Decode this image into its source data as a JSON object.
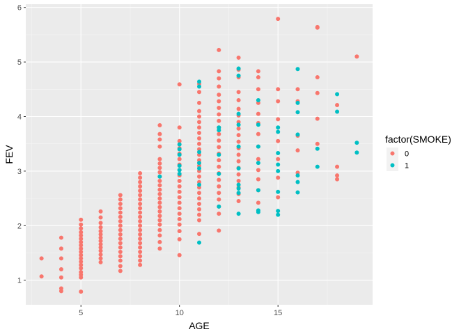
{
  "chart_data": {
    "type": "scatter",
    "title": "",
    "xlabel": "AGE",
    "ylabel": "FEV",
    "xlim": [
      2.2,
      19.8
    ],
    "ylim": [
      0.55,
      6.06
    ],
    "x_ticks": [
      5,
      10,
      15
    ],
    "y_ticks": [
      1,
      2,
      3,
      4,
      5,
      6
    ],
    "grid": true,
    "legend": {
      "title": "factor(SMOKE)",
      "position": "right"
    },
    "series": [
      {
        "name": "0",
        "color": "#F8766D",
        "points": [
          [
            3,
            1.07
          ],
          [
            3,
            1.4
          ],
          [
            4,
            0.8
          ],
          [
            4,
            0.85
          ],
          [
            4,
            1.05
          ],
          [
            4,
            1.2
          ],
          [
            4,
            1.4
          ],
          [
            4,
            1.58
          ],
          [
            4,
            1.78
          ],
          [
            5,
            0.79
          ],
          [
            5,
            1.05
          ],
          [
            5,
            1.1
          ],
          [
            5,
            1.15
          ],
          [
            5,
            1.22
          ],
          [
            5,
            1.28
          ],
          [
            5,
            1.34
          ],
          [
            5,
            1.4
          ],
          [
            5,
            1.46
          ],
          [
            5,
            1.52
          ],
          [
            5,
            1.58
          ],
          [
            5,
            1.64
          ],
          [
            5,
            1.7
          ],
          [
            5,
            1.76
          ],
          [
            5,
            1.82
          ],
          [
            5,
            1.88
          ],
          [
            5,
            1.95
          ],
          [
            5,
            2.02
          ],
          [
            5,
            2.11
          ],
          [
            6,
            1.33
          ],
          [
            6,
            1.4
          ],
          [
            6,
            1.47
          ],
          [
            6,
            1.54
          ],
          [
            6,
            1.6
          ],
          [
            6,
            1.66
          ],
          [
            6,
            1.72
          ],
          [
            6,
            1.78
          ],
          [
            6,
            1.84
          ],
          [
            6,
            1.9
          ],
          [
            6,
            1.97
          ],
          [
            6,
            2.05
          ],
          [
            6,
            2.15
          ],
          [
            6,
            2.26
          ],
          [
            7,
            1.17
          ],
          [
            7,
            1.26
          ],
          [
            7,
            1.36
          ],
          [
            7,
            1.44
          ],
          [
            7,
            1.52
          ],
          [
            7,
            1.6
          ],
          [
            7,
            1.68
          ],
          [
            7,
            1.76
          ],
          [
            7,
            1.84
          ],
          [
            7,
            1.92
          ],
          [
            7,
            2.0
          ],
          [
            7,
            2.08
          ],
          [
            7,
            2.16
          ],
          [
            7,
            2.24
          ],
          [
            7,
            2.32
          ],
          [
            7,
            2.4
          ],
          [
            7,
            2.48
          ],
          [
            7,
            2.56
          ],
          [
            8,
            1.28
          ],
          [
            8,
            1.36
          ],
          [
            8,
            1.44
          ],
          [
            8,
            1.52
          ],
          [
            8,
            1.6
          ],
          [
            8,
            1.68
          ],
          [
            8,
            1.76
          ],
          [
            8,
            1.84
          ],
          [
            8,
            1.92
          ],
          [
            8,
            2.0
          ],
          [
            8,
            2.08
          ],
          [
            8,
            2.16
          ],
          [
            8,
            2.24
          ],
          [
            8,
            2.32
          ],
          [
            8,
            2.4
          ],
          [
            8,
            2.48
          ],
          [
            8,
            2.56
          ],
          [
            8,
            2.64
          ],
          [
            8,
            2.72
          ],
          [
            8,
            2.8
          ],
          [
            8,
            2.88
          ],
          [
            8,
            2.96
          ],
          [
            9,
            1.58
          ],
          [
            9,
            1.7
          ],
          [
            9,
            1.82
          ],
          [
            9,
            1.92
          ],
          [
            9,
            2.02
          ],
          [
            9,
            2.1
          ],
          [
            9,
            2.18
          ],
          [
            9,
            2.26
          ],
          [
            9,
            2.34
          ],
          [
            9,
            2.42
          ],
          [
            9,
            2.5
          ],
          [
            9,
            2.58
          ],
          [
            9,
            2.66
          ],
          [
            9,
            2.74
          ],
          [
            9,
            2.82
          ],
          [
            9,
            2.9
          ],
          [
            9,
            2.98
          ],
          [
            9,
            3.06
          ],
          [
            9,
            3.14
          ],
          [
            9,
            3.22
          ],
          [
            9,
            3.45
          ],
          [
            9,
            3.58
          ],
          [
            9,
            3.68
          ],
          [
            9,
            3.84
          ],
          [
            10,
            1.46
          ],
          [
            10,
            1.75
          ],
          [
            10,
            1.9
          ],
          [
            10,
            2.02
          ],
          [
            10,
            2.12
          ],
          [
            10,
            2.22
          ],
          [
            10,
            2.32
          ],
          [
            10,
            2.42
          ],
          [
            10,
            2.52
          ],
          [
            10,
            2.62
          ],
          [
            10,
            2.72
          ],
          [
            10,
            2.82
          ],
          [
            10,
            2.92
          ],
          [
            10,
            3.02
          ],
          [
            10,
            3.12
          ],
          [
            10,
            3.22
          ],
          [
            10,
            3.32
          ],
          [
            10,
            3.42
          ],
          [
            10,
            3.55
          ],
          [
            10,
            3.8
          ],
          [
            10,
            4.59
          ],
          [
            11,
            1.85
          ],
          [
            11,
            2.1
          ],
          [
            11,
            2.2
          ],
          [
            11,
            2.3
          ],
          [
            11,
            2.4
          ],
          [
            11,
            2.5
          ],
          [
            11,
            2.6
          ],
          [
            11,
            2.7
          ],
          [
            11,
            2.8
          ],
          [
            11,
            2.9
          ],
          [
            11,
            3.0
          ],
          [
            11,
            3.1
          ],
          [
            11,
            3.2
          ],
          [
            11,
            3.3
          ],
          [
            11,
            3.4
          ],
          [
            11,
            3.5
          ],
          [
            11,
            3.6
          ],
          [
            11,
            3.7
          ],
          [
            11,
            3.8
          ],
          [
            11,
            3.9
          ],
          [
            11,
            4.0
          ],
          [
            11,
            4.1
          ],
          [
            11,
            4.25
          ],
          [
            11,
            4.45
          ],
          [
            11,
            4.6
          ],
          [
            12,
            1.91
          ],
          [
            12,
            2.22
          ],
          [
            12,
            2.35
          ],
          [
            12,
            2.48
          ],
          [
            12,
            2.6
          ],
          [
            12,
            2.72
          ],
          [
            12,
            2.84
          ],
          [
            12,
            2.96
          ],
          [
            12,
            3.08
          ],
          [
            12,
            3.2
          ],
          [
            12,
            3.32
          ],
          [
            12,
            3.44
          ],
          [
            12,
            3.56
          ],
          [
            12,
            3.68
          ],
          [
            12,
            3.8
          ],
          [
            12,
            3.92
          ],
          [
            12,
            4.04
          ],
          [
            12,
            4.16
          ],
          [
            12,
            4.28
          ],
          [
            12,
            4.4
          ],
          [
            12,
            4.55
          ],
          [
            12,
            4.7
          ],
          [
            12,
            4.83
          ],
          [
            12,
            5.22
          ],
          [
            13,
            2.45
          ],
          [
            13,
            2.58
          ],
          [
            13,
            2.7
          ],
          [
            13,
            2.82
          ],
          [
            13,
            2.94
          ],
          [
            13,
            3.06
          ],
          [
            13,
            3.18
          ],
          [
            13,
            3.3
          ],
          [
            13,
            3.42
          ],
          [
            13,
            3.54
          ],
          [
            13,
            3.66
          ],
          [
            13,
            3.78
          ],
          [
            13,
            3.9
          ],
          [
            13,
            4.02
          ],
          [
            13,
            4.14
          ],
          [
            13,
            4.3
          ],
          [
            13,
            4.45
          ],
          [
            13,
            4.72
          ],
          [
            13,
            4.86
          ],
          [
            13,
            5.08
          ],
          [
            14,
            2.42
          ],
          [
            14,
            2.65
          ],
          [
            14,
            2.85
          ],
          [
            14,
            3.02
          ],
          [
            14,
            3.22
          ],
          [
            14,
            3.45
          ],
          [
            14,
            3.68
          ],
          [
            14,
            3.88
          ],
          [
            14,
            4.05
          ],
          [
            14,
            4.25
          ],
          [
            14,
            4.5
          ],
          [
            14,
            4.72
          ],
          [
            14,
            4.83
          ],
          [
            15,
            2.52
          ],
          [
            15,
            2.88
          ],
          [
            15,
            3.22
          ],
          [
            15,
            3.55
          ],
          [
            15,
            3.95
          ],
          [
            15,
            4.28
          ],
          [
            15,
            4.5
          ],
          [
            15,
            5.79
          ],
          [
            16,
            2.97
          ],
          [
            16,
            3.38
          ],
          [
            16,
            3.65
          ],
          [
            16,
            4.28
          ],
          [
            16,
            4.5
          ],
          [
            17,
            3.5
          ],
          [
            17,
            3.96
          ],
          [
            17,
            4.43
          ],
          [
            17,
            4.72
          ],
          [
            17,
            5.63
          ],
          [
            17,
            5.64
          ],
          [
            18,
            2.85
          ],
          [
            18,
            2.92
          ],
          [
            18,
            3.08
          ],
          [
            18,
            4.21
          ],
          [
            19,
            5.1
          ]
        ]
      },
      {
        "name": "1",
        "color": "#00BFC4",
        "points": [
          [
            9,
            2.9
          ],
          [
            10,
            2.95
          ],
          [
            10,
            3.02
          ],
          [
            10,
            3.1
          ],
          [
            10,
            3.3
          ],
          [
            10,
            3.4
          ],
          [
            10,
            3.49
          ],
          [
            11,
            1.69
          ],
          [
            11,
            2.75
          ],
          [
            11,
            3.05
          ],
          [
            11,
            3.15
          ],
          [
            11,
            3.35
          ],
          [
            11,
            4.55
          ],
          [
            11,
            4.64
          ],
          [
            12,
            2.35
          ],
          [
            12,
            2.95
          ],
          [
            12,
            3.3
          ],
          [
            12,
            3.75
          ],
          [
            12,
            3.8
          ],
          [
            13,
            2.22
          ],
          [
            13,
            2.6
          ],
          [
            13,
            2.68
          ],
          [
            13,
            2.75
          ],
          [
            13,
            3.05
          ],
          [
            13,
            3.45
          ],
          [
            13,
            3.85
          ],
          [
            13,
            4.05
          ],
          [
            13,
            4.75
          ],
          [
            13,
            4.88
          ],
          [
            14,
            2.25
          ],
          [
            14,
            2.28
          ],
          [
            14,
            2.65
          ],
          [
            14,
            3.15
          ],
          [
            14,
            3.45
          ],
          [
            14,
            3.85
          ],
          [
            14,
            4.3
          ],
          [
            15,
            2.2
          ],
          [
            15,
            2.27
          ],
          [
            15,
            2.62
          ],
          [
            15,
            3.0
          ],
          [
            15,
            3.12
          ],
          [
            15,
            3.33
          ],
          [
            15,
            3.72
          ],
          [
            15,
            3.8
          ],
          [
            16,
            2.61
          ],
          [
            16,
            2.8
          ],
          [
            16,
            2.92
          ],
          [
            16,
            3.67
          ],
          [
            16,
            4.08
          ],
          [
            16,
            4.25
          ],
          [
            16,
            4.87
          ],
          [
            17,
            3.08
          ],
          [
            17,
            3.41
          ],
          [
            18,
            4.09
          ],
          [
            18,
            4.41
          ],
          [
            19,
            3.34
          ],
          [
            19,
            3.52
          ]
        ]
      }
    ]
  }
}
